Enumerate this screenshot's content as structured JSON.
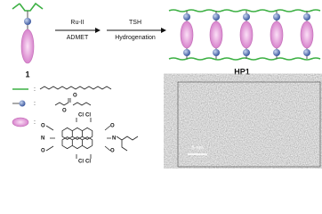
{
  "reaction": {
    "monomer_label": "1",
    "catalyst": "Ru-II",
    "step1": "ADMET",
    "reagent": "TSH",
    "step2": "Hydrogenation",
    "product_label": "HP1"
  },
  "legend_separator": ":",
  "structure": {
    "top_atoms": [
      "Cl",
      "Cl"
    ],
    "bottom_atoms": [
      "Cl",
      "Cl"
    ],
    "left_atoms": [
      "O",
      "N",
      "O"
    ],
    "right_atoms": [
      "O",
      "N",
      "O"
    ],
    "ester_atoms": [
      "O",
      "O"
    ]
  },
  "micrograph": {
    "scale_bar": "5 nm"
  }
}
